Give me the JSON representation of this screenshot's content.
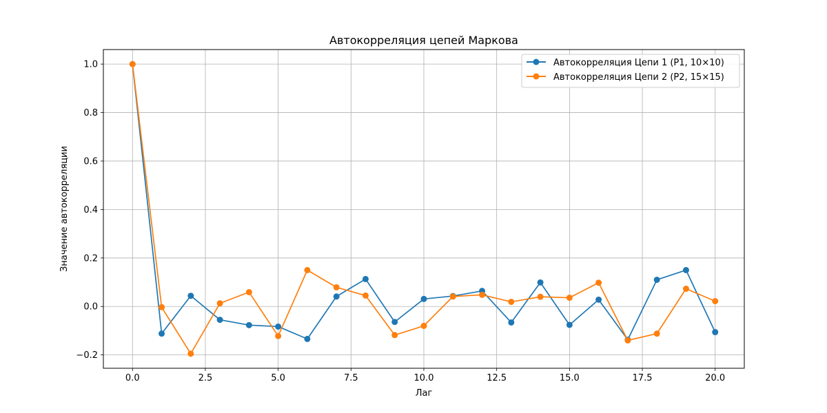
{
  "chart_data": {
    "type": "line",
    "title": "Автокорреляция цепей Маркова",
    "xlabel": "Лаг",
    "ylabel": "Значение автокорреляции",
    "xlim": [
      -1.0,
      21.0
    ],
    "ylim": [
      -0.255,
      1.06
    ],
    "x_ticks": [
      0.0,
      2.5,
      5.0,
      7.5,
      10.0,
      12.5,
      15.0,
      17.5,
      20.0
    ],
    "x_tick_labels": [
      "0.0",
      "2.5",
      "5.0",
      "7.5",
      "10.0",
      "12.5",
      "15.0",
      "17.5",
      "20.0"
    ],
    "y_ticks": [
      -0.2,
      0.0,
      0.2,
      0.4,
      0.6,
      0.8,
      1.0
    ],
    "y_tick_labels": [
      "−0.2",
      "0.0",
      "0.2",
      "0.4",
      "0.6",
      "0.8",
      "1.0"
    ],
    "grid": true,
    "legend_position": "top-right",
    "x": [
      0,
      1,
      2,
      3,
      4,
      5,
      6,
      7,
      8,
      9,
      10,
      11,
      12,
      13,
      14,
      15,
      16,
      17,
      18,
      19,
      20
    ],
    "series": [
      {
        "name": "Автокорреляция Цепи 1 (P1, 10×10)",
        "color": "#1f77b4",
        "values": [
          1.0,
          -0.112,
          0.044,
          -0.055,
          -0.077,
          -0.083,
          -0.134,
          0.041,
          0.113,
          -0.064,
          0.031,
          0.043,
          0.064,
          -0.066,
          0.099,
          -0.076,
          0.028,
          -0.137,
          0.11,
          0.15,
          -0.106
        ]
      },
      {
        "name": "Автокорреляция Цепи 2 (P2, 15×15)",
        "color": "#ff7f0e",
        "values": [
          1.0,
          -0.003,
          -0.195,
          0.013,
          0.059,
          -0.122,
          0.15,
          0.079,
          0.045,
          -0.118,
          -0.08,
          0.041,
          0.048,
          0.019,
          0.04,
          0.036,
          0.098,
          -0.14,
          -0.112,
          0.073,
          0.022
        ]
      }
    ]
  }
}
